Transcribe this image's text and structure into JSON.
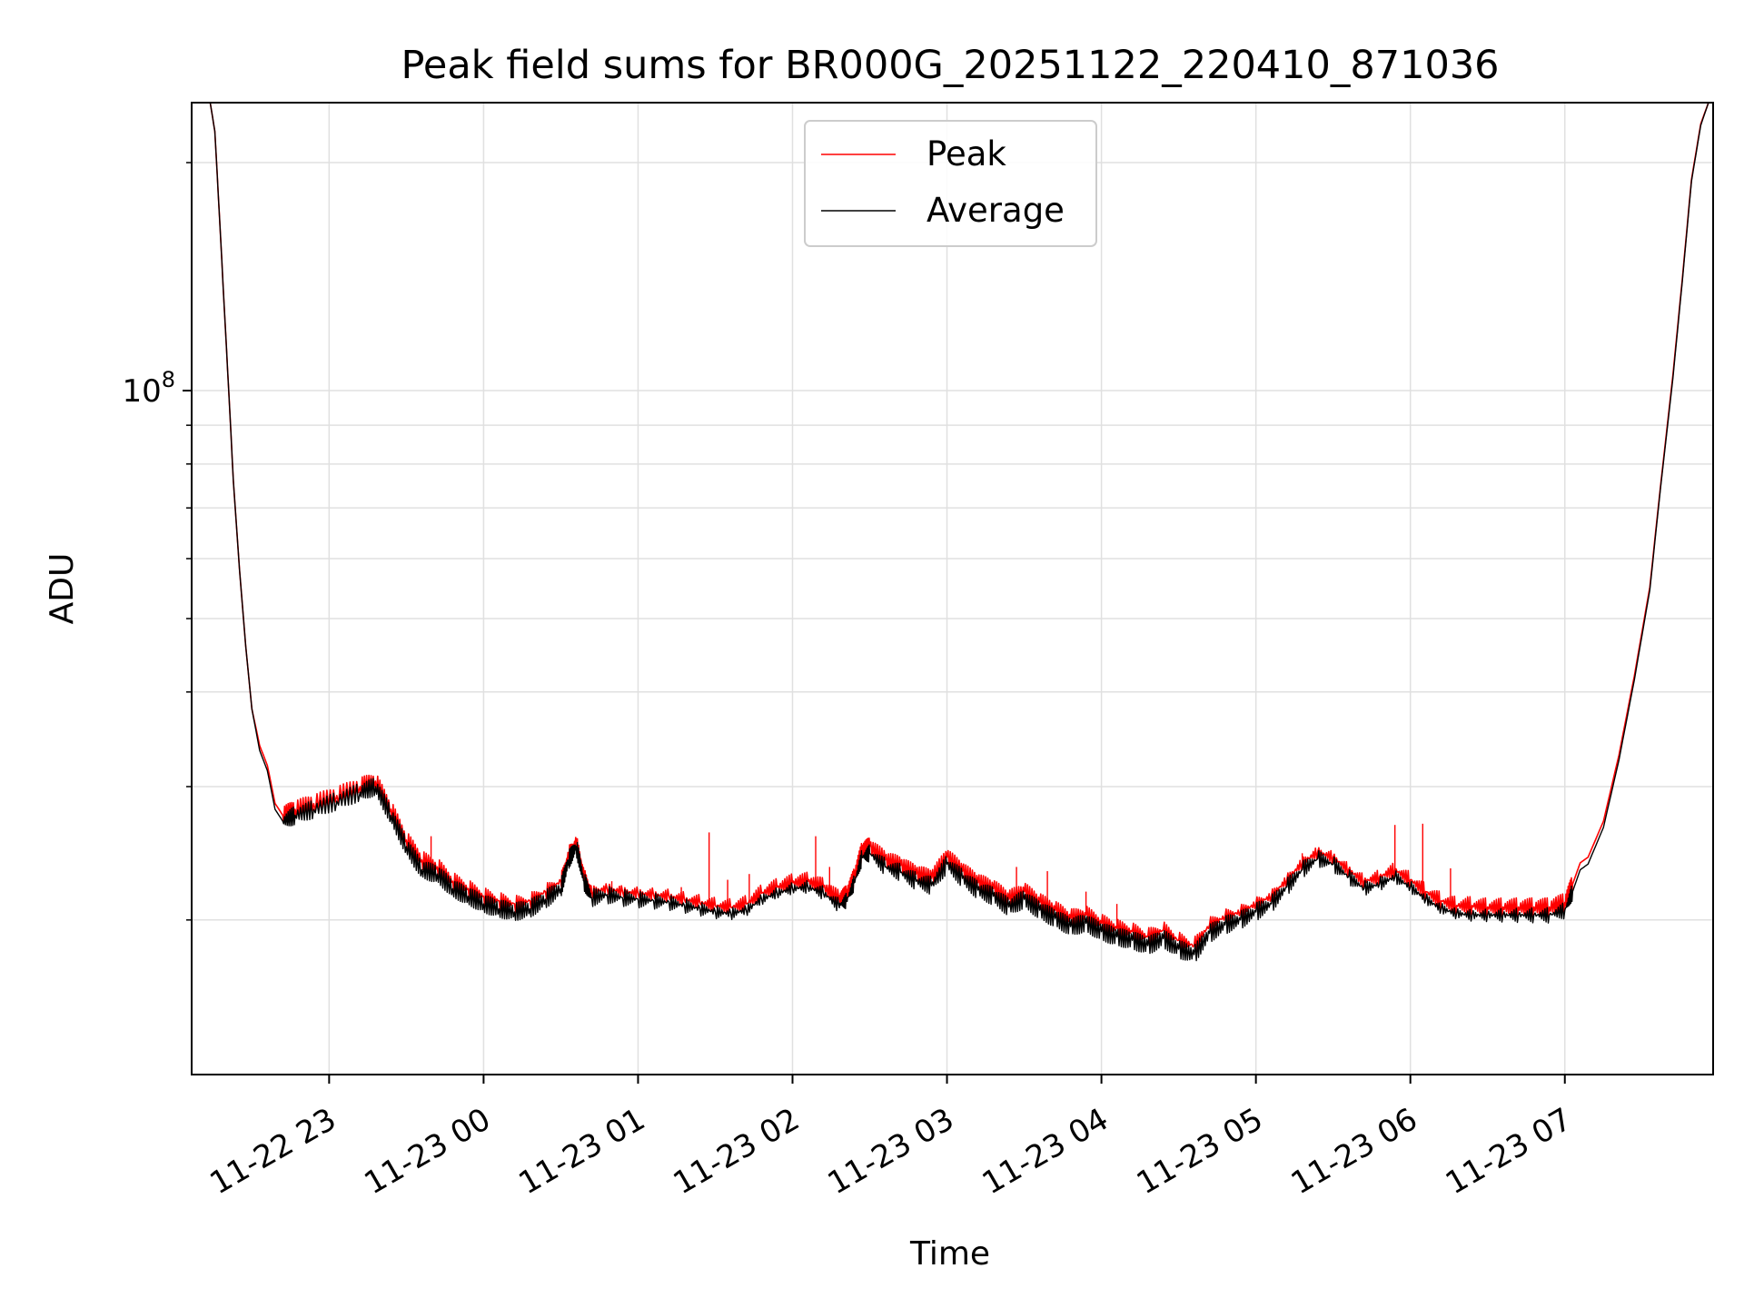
{
  "chart_data": {
    "type": "line",
    "title": "Peak field sums for BR000G_20251122_220410_871036",
    "xlabel": "Time",
    "ylabel": "ADU",
    "yscale": "log",
    "ylim": [
      12500000,
      240000000
    ],
    "xlim_hours": [
      -0.89,
      8.96
    ],
    "x_ticks": [
      {
        "label": "11-22 23",
        "hour": 0
      },
      {
        "label": "11-23 00",
        "hour": 1
      },
      {
        "label": "11-23 01",
        "hour": 2
      },
      {
        "label": "11-23 02",
        "hour": 3
      },
      {
        "label": "11-23 03",
        "hour": 4
      },
      {
        "label": "11-23 04",
        "hour": 5
      },
      {
        "label": "11-23 05",
        "hour": 6
      },
      {
        "label": "11-23 06",
        "hour": 7
      },
      {
        "label": "11-23 07",
        "hour": 8
      }
    ],
    "y_tick_major": {
      "base": "10",
      "exp": "8",
      "value": 100000000
    },
    "y_minor_ticks": [
      20000000,
      30000000,
      40000000,
      50000000,
      60000000,
      70000000,
      80000000,
      90000000,
      200000000
    ],
    "grid": true,
    "legend": {
      "position": "upper-center",
      "entries": [
        {
          "name": "Peak",
          "color": "#ff0000"
        },
        {
          "name": "Average",
          "color": "#000000"
        }
      ]
    },
    "series": [
      {
        "name": "Peak",
        "color": "#ff0000",
        "points": [
          [
            -0.77,
            240000000
          ],
          [
            -0.74,
            220000000
          ],
          [
            -0.71,
            170000000
          ],
          [
            -0.68,
            130000000
          ],
          [
            -0.65,
            100000000
          ],
          [
            -0.62,
            76000000
          ],
          [
            -0.58,
            58000000
          ],
          [
            -0.54,
            46000000
          ],
          [
            -0.5,
            38000000
          ],
          [
            -0.45,
            34000000
          ],
          [
            -0.4,
            32000000
          ],
          [
            -0.35,
            28500000
          ],
          [
            -0.3,
            27500000
          ],
          [
            -0.22,
            28000000
          ],
          [
            -0.1,
            28500000
          ],
          [
            0.05,
            29200000
          ],
          [
            0.2,
            30000000
          ],
          [
            0.3,
            30500000
          ],
          [
            0.4,
            28000000
          ],
          [
            0.5,
            25500000
          ],
          [
            0.6,
            24000000
          ],
          [
            0.7,
            23500000
          ],
          [
            0.8,
            22500000
          ],
          [
            0.9,
            22000000
          ],
          [
            1.0,
            21500000
          ],
          [
            1.1,
            21200000
          ],
          [
            1.2,
            21000000
          ],
          [
            1.3,
            21200000
          ],
          [
            1.4,
            21800000
          ],
          [
            1.5,
            22500000
          ],
          [
            1.55,
            24500000
          ],
          [
            1.6,
            25500000
          ],
          [
            1.65,
            23000000
          ],
          [
            1.7,
            21800000
          ],
          [
            1.8,
            22000000
          ],
          [
            1.9,
            21800000
          ],
          [
            2.0,
            21700000
          ],
          [
            2.1,
            21600000
          ],
          [
            2.2,
            21500000
          ],
          [
            2.3,
            21300000
          ],
          [
            2.4,
            21100000
          ],
          [
            2.5,
            20900000
          ],
          [
            2.6,
            20800000
          ],
          [
            2.7,
            21000000
          ],
          [
            2.8,
            21700000
          ],
          [
            2.9,
            22100000
          ],
          [
            3.0,
            22400000
          ],
          [
            3.1,
            22500000
          ],
          [
            3.2,
            22100000
          ],
          [
            3.3,
            21300000
          ],
          [
            3.35,
            21600000
          ],
          [
            3.4,
            22800000
          ],
          [
            3.45,
            24700000
          ],
          [
            3.5,
            25000000
          ],
          [
            3.6,
            24000000
          ],
          [
            3.7,
            23600000
          ],
          [
            3.8,
            23000000
          ],
          [
            3.9,
            22700000
          ],
          [
            4.0,
            24200000
          ],
          [
            4.1,
            23200000
          ],
          [
            4.2,
            22400000
          ],
          [
            4.3,
            22000000
          ],
          [
            4.4,
            21300000
          ],
          [
            4.5,
            21800000
          ],
          [
            4.6,
            21100000
          ],
          [
            4.7,
            20600000
          ],
          [
            4.8,
            20100000
          ],
          [
            4.9,
            20300000
          ],
          [
            5.0,
            19800000
          ],
          [
            5.1,
            19500000
          ],
          [
            5.2,
            19300000
          ],
          [
            5.3,
            19000000
          ],
          [
            5.4,
            19400000
          ],
          [
            5.5,
            18800000
          ],
          [
            5.6,
            18500000
          ],
          [
            5.7,
            19700000
          ],
          [
            5.8,
            20200000
          ],
          [
            5.9,
            20500000
          ],
          [
            6.0,
            21000000
          ],
          [
            6.1,
            21500000
          ],
          [
            6.2,
            22600000
          ],
          [
            6.3,
            23800000
          ],
          [
            6.4,
            24600000
          ],
          [
            6.5,
            24200000
          ],
          [
            6.6,
            23300000
          ],
          [
            6.7,
            22500000
          ],
          [
            6.8,
            22800000
          ],
          [
            6.9,
            23300000
          ],
          [
            7.0,
            22600000
          ],
          [
            7.1,
            21800000
          ],
          [
            7.2,
            21200000
          ],
          [
            7.3,
            20900000
          ],
          [
            7.4,
            20900000
          ],
          [
            7.5,
            20800000
          ],
          [
            7.6,
            20800000
          ],
          [
            7.7,
            20800000
          ],
          [
            7.8,
            20800000
          ],
          [
            7.9,
            20800000
          ],
          [
            8.0,
            21100000
          ],
          [
            8.05,
            22300000
          ],
          [
            8.1,
            23800000
          ],
          [
            8.15,
            24200000
          ],
          [
            8.25,
            27000000
          ],
          [
            8.35,
            33000000
          ],
          [
            8.45,
            42000000
          ],
          [
            8.55,
            55000000
          ],
          [
            8.62,
            75000000
          ],
          [
            8.7,
            105000000
          ],
          [
            8.76,
            140000000
          ],
          [
            8.82,
            190000000
          ],
          [
            8.88,
            225000000
          ],
          [
            8.93,
            240000000
          ]
        ],
        "spikes": [
          [
            0.66,
            25800000
          ],
          [
            1.83,
            22500000
          ],
          [
            1.88,
            22200000
          ],
          [
            2.28,
            22100000
          ],
          [
            2.46,
            26100000
          ],
          [
            2.58,
            22600000
          ],
          [
            2.72,
            23000000
          ],
          [
            3.15,
            25800000
          ],
          [
            3.24,
            23500000
          ],
          [
            3.7,
            24000000
          ],
          [
            4.45,
            23500000
          ],
          [
            4.65,
            23200000
          ],
          [
            4.9,
            21800000
          ],
          [
            5.1,
            21000000
          ],
          [
            6.3,
            24500000
          ],
          [
            6.9,
            26700000
          ],
          [
            7.08,
            26800000
          ],
          [
            7.26,
            23400000
          ],
          [
            7.37,
            21500000
          ]
        ]
      },
      {
        "name": "Average",
        "color": "#000000",
        "points": [
          [
            -0.77,
            240000000
          ],
          [
            -0.74,
            220000000
          ],
          [
            -0.71,
            170000000
          ],
          [
            -0.68,
            130000000
          ],
          [
            -0.65,
            100000000
          ],
          [
            -0.62,
            76000000
          ],
          [
            -0.58,
            58000000
          ],
          [
            -0.54,
            46000000
          ],
          [
            -0.5,
            38000000
          ],
          [
            -0.45,
            33500000
          ],
          [
            -0.4,
            31500000
          ],
          [
            -0.35,
            28000000
          ],
          [
            -0.3,
            27000000
          ],
          [
            -0.22,
            27500000
          ],
          [
            -0.1,
            28000000
          ],
          [
            0.05,
            28700000
          ],
          [
            0.2,
            29500000
          ],
          [
            0.3,
            30000000
          ],
          [
            0.4,
            27500000
          ],
          [
            0.5,
            25000000
          ],
          [
            0.6,
            23300000
          ],
          [
            0.7,
            23000000
          ],
          [
            0.8,
            22000000
          ],
          [
            0.9,
            21500000
          ],
          [
            1.0,
            21000000
          ],
          [
            1.1,
            20700000
          ],
          [
            1.2,
            20500000
          ],
          [
            1.3,
            20700000
          ],
          [
            1.4,
            21300000
          ],
          [
            1.5,
            22000000
          ],
          [
            1.55,
            24000000
          ],
          [
            1.6,
            25000000
          ],
          [
            1.65,
            22500000
          ],
          [
            1.7,
            21400000
          ],
          [
            1.8,
            21600000
          ],
          [
            1.9,
            21400000
          ],
          [
            2.0,
            21300000
          ],
          [
            2.1,
            21200000
          ],
          [
            2.2,
            21100000
          ],
          [
            2.3,
            20900000
          ],
          [
            2.4,
            20700000
          ],
          [
            2.5,
            20500000
          ],
          [
            2.6,
            20400000
          ],
          [
            2.7,
            20600000
          ],
          [
            2.8,
            21300000
          ],
          [
            2.9,
            21700000
          ],
          [
            3.0,
            22000000
          ],
          [
            3.1,
            22100000
          ],
          [
            3.2,
            21700000
          ],
          [
            3.3,
            20900000
          ],
          [
            3.35,
            21200000
          ],
          [
            3.4,
            22400000
          ],
          [
            3.45,
            24200000
          ],
          [
            3.5,
            24500000
          ],
          [
            3.6,
            23500000
          ],
          [
            3.7,
            23100000
          ],
          [
            3.8,
            22500000
          ],
          [
            3.9,
            22200000
          ],
          [
            4.0,
            23700000
          ],
          [
            4.1,
            22700000
          ],
          [
            4.2,
            21900000
          ],
          [
            4.3,
            21500000
          ],
          [
            4.4,
            20800000
          ],
          [
            4.5,
            21300000
          ],
          [
            4.6,
            20600000
          ],
          [
            4.7,
            20100000
          ],
          [
            4.8,
            19600000
          ],
          [
            4.9,
            19800000
          ],
          [
            5.0,
            19300000
          ],
          [
            5.1,
            19000000
          ],
          [
            5.2,
            18800000
          ],
          [
            5.3,
            18500000
          ],
          [
            5.4,
            18900000
          ],
          [
            5.5,
            18300000
          ],
          [
            5.6,
            18000000
          ],
          [
            5.7,
            19200000
          ],
          [
            5.8,
            19700000
          ],
          [
            5.9,
            20000000
          ],
          [
            6.0,
            20500000
          ],
          [
            6.1,
            21000000
          ],
          [
            6.2,
            22100000
          ],
          [
            6.3,
            23300000
          ],
          [
            6.4,
            24100000
          ],
          [
            6.5,
            23700000
          ],
          [
            6.6,
            22800000
          ],
          [
            6.7,
            22000000
          ],
          [
            6.8,
            22300000
          ],
          [
            6.9,
            22800000
          ],
          [
            7.0,
            22100000
          ],
          [
            7.1,
            21300000
          ],
          [
            7.2,
            20700000
          ],
          [
            7.3,
            20400000
          ],
          [
            7.4,
            20300000
          ],
          [
            7.5,
            20300000
          ],
          [
            7.6,
            20300000
          ],
          [
            7.7,
            20300000
          ],
          [
            7.8,
            20300000
          ],
          [
            7.9,
            20300000
          ],
          [
            8.0,
            20600000
          ],
          [
            8.05,
            21800000
          ],
          [
            8.1,
            23300000
          ],
          [
            8.15,
            23700000
          ],
          [
            8.25,
            26500000
          ],
          [
            8.35,
            32500000
          ],
          [
            8.45,
            41500000
          ],
          [
            8.55,
            54500000
          ],
          [
            8.62,
            74500000
          ],
          [
            8.7,
            104000000
          ],
          [
            8.76,
            139000000
          ],
          [
            8.82,
            189000000
          ],
          [
            8.88,
            224000000
          ],
          [
            8.93,
            240000000
          ]
        ]
      }
    ]
  }
}
